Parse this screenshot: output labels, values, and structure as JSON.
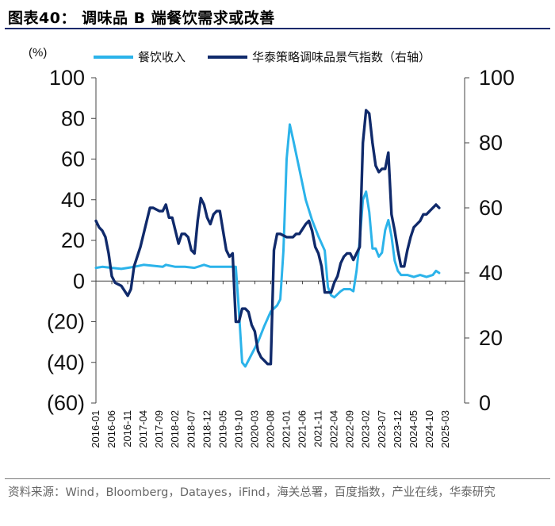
{
  "header": {
    "title": "图表40：  调味品 B 端餐饮需求或改善"
  },
  "footer": {
    "source": "资料来源：Wind，Bloomberg，Datayes，iFind，海关总署，百度指数，产业在线，华泰研究"
  },
  "chart_data": {
    "type": "line",
    "y_unit_label": "(%)",
    "left_axis": {
      "ylim": [
        -60,
        100
      ],
      "ticks": [
        100,
        80,
        60,
        40,
        20,
        0,
        -20,
        -40,
        -60
      ],
      "tick_labels": [
        "100",
        "80",
        "60",
        "40",
        "20",
        "0",
        "(20)",
        "(40)",
        "(60)"
      ]
    },
    "right_axis": {
      "ylim": [
        0,
        100
      ],
      "ticks": [
        100,
        80,
        60,
        40,
        20,
        0
      ],
      "tick_labels": [
        "100",
        "80",
        "60",
        "40",
        "20",
        "0"
      ]
    },
    "x_range": [
      0,
      116
    ],
    "x_tick_labels": [
      "2016-01",
      "2016-06",
      "2016-11",
      "2017-04",
      "2017-09",
      "2018-02",
      "2018-07",
      "2018-12",
      "2019-05",
      "2019-10",
      "2020-03",
      "2020-08",
      "2021-01",
      "2021-06",
      "2021-11",
      "2022-04",
      "2022-09",
      "2023-02",
      "2023-07",
      "2023-12",
      "2024-05",
      "2024-10",
      "2025-03"
    ],
    "x_tick_step": 5,
    "legend": {
      "placement": "top"
    },
    "series": [
      {
        "name": "餐饮收入",
        "axis": "left",
        "color": "#2bb3ea",
        "points": [
          [
            0,
            6.5
          ],
          [
            2,
            7
          ],
          [
            5,
            6.5
          ],
          [
            8,
            6
          ],
          [
            10,
            6.5
          ],
          [
            12,
            7
          ],
          [
            15,
            8
          ],
          [
            18,
            7.5
          ],
          [
            21,
            7
          ],
          [
            22,
            8
          ],
          [
            25,
            7
          ],
          [
            28,
            7
          ],
          [
            31,
            6.5
          ],
          [
            34,
            8
          ],
          [
            36,
            7
          ],
          [
            40,
            7
          ],
          [
            44,
            7
          ],
          [
            45,
            -15
          ],
          [
            46,
            -40
          ],
          [
            47,
            -42
          ],
          [
            49,
            -36
          ],
          [
            51,
            -30
          ],
          [
            53,
            -22
          ],
          [
            55,
            -15
          ],
          [
            57,
            -12
          ],
          [
            58,
            -9
          ],
          [
            59,
            15
          ],
          [
            60,
            60
          ],
          [
            61,
            77
          ],
          [
            62,
            70
          ],
          [
            64,
            55
          ],
          [
            66,
            40
          ],
          [
            68,
            30
          ],
          [
            70,
            22
          ],
          [
            72,
            15
          ],
          [
            73,
            -3
          ],
          [
            74,
            -7
          ],
          [
            75,
            -8
          ],
          [
            77,
            -5
          ],
          [
            78,
            -4
          ],
          [
            80,
            -4
          ],
          [
            81,
            -5
          ],
          [
            82,
            5
          ],
          [
            83,
            20
          ],
          [
            84,
            40
          ],
          [
            85,
            44
          ],
          [
            86,
            34
          ],
          [
            87,
            16
          ],
          [
            88,
            16
          ],
          [
            89,
            12
          ],
          [
            90,
            14
          ],
          [
            91,
            25
          ],
          [
            92,
            30
          ],
          [
            93,
            22
          ],
          [
            94,
            10
          ],
          [
            95,
            5
          ],
          [
            96,
            3
          ],
          [
            98,
            3
          ],
          [
            100,
            2
          ],
          [
            102,
            3
          ],
          [
            104,
            2
          ],
          [
            106,
            3
          ],
          [
            107,
            5
          ],
          [
            108,
            4
          ]
        ]
      },
      {
        "name": "华泰策略调味品景气指数（右轴）",
        "axis": "right",
        "color": "#102a6b",
        "points": [
          [
            0,
            56
          ],
          [
            1,
            54
          ],
          [
            2,
            53
          ],
          [
            3,
            51
          ],
          [
            4,
            46
          ],
          [
            5,
            39
          ],
          [
            6,
            37
          ],
          [
            8,
            36
          ],
          [
            10,
            33
          ],
          [
            11,
            35
          ],
          [
            12,
            42
          ],
          [
            14,
            48
          ],
          [
            16,
            56
          ],
          [
            17,
            60
          ],
          [
            18,
            60
          ],
          [
            20,
            59
          ],
          [
            21,
            59
          ],
          [
            22,
            61
          ],
          [
            23,
            57
          ],
          [
            24,
            57
          ],
          [
            25,
            53
          ],
          [
            26,
            49
          ],
          [
            27,
            52
          ],
          [
            28,
            52
          ],
          [
            29,
            51
          ],
          [
            30,
            47
          ],
          [
            31,
            46
          ],
          [
            32,
            56
          ],
          [
            33,
            63
          ],
          [
            34,
            61
          ],
          [
            35,
            57
          ],
          [
            36,
            55
          ],
          [
            37,
            58
          ],
          [
            38,
            59
          ],
          [
            39,
            59
          ],
          [
            40,
            53
          ],
          [
            41,
            47
          ],
          [
            42,
            45
          ],
          [
            43,
            46
          ],
          [
            44,
            25
          ],
          [
            45,
            25
          ],
          [
            46,
            29
          ],
          [
            47,
            29
          ],
          [
            48,
            28
          ],
          [
            49,
            24
          ],
          [
            50,
            22
          ],
          [
            51,
            16
          ],
          [
            52,
            14
          ],
          [
            53,
            13
          ],
          [
            54,
            12
          ],
          [
            55,
            12
          ],
          [
            56,
            47
          ],
          [
            57,
            52
          ],
          [
            58,
            52
          ],
          [
            60,
            51
          ],
          [
            62,
            51
          ],
          [
            63,
            52
          ],
          [
            64,
            52
          ],
          [
            66,
            55
          ],
          [
            67,
            56
          ],
          [
            68,
            53
          ],
          [
            69,
            48
          ],
          [
            70,
            46
          ],
          [
            71,
            42
          ],
          [
            72,
            34
          ],
          [
            73,
            34
          ],
          [
            74,
            34
          ],
          [
            75,
            37
          ],
          [
            76,
            39
          ],
          [
            77,
            43
          ],
          [
            78,
            45
          ],
          [
            79,
            46
          ],
          [
            80,
            46
          ],
          [
            81,
            44
          ],
          [
            82,
            46
          ],
          [
            83,
            48
          ],
          [
            84,
            80
          ],
          [
            85,
            90
          ],
          [
            86,
            89
          ],
          [
            87,
            80
          ],
          [
            88,
            73
          ],
          [
            89,
            71
          ],
          [
            90,
            72
          ],
          [
            91,
            72
          ],
          [
            92,
            77
          ],
          [
            93,
            58
          ],
          [
            94,
            53
          ],
          [
            95,
            47
          ],
          [
            96,
            42
          ],
          [
            97,
            42
          ],
          [
            98,
            47
          ],
          [
            99,
            51
          ],
          [
            100,
            54
          ],
          [
            101,
            55
          ],
          [
            102,
            56
          ],
          [
            103,
            58
          ],
          [
            104,
            58
          ],
          [
            105,
            59
          ],
          [
            106,
            60
          ],
          [
            107,
            61
          ],
          [
            108,
            60
          ]
        ]
      }
    ]
  }
}
